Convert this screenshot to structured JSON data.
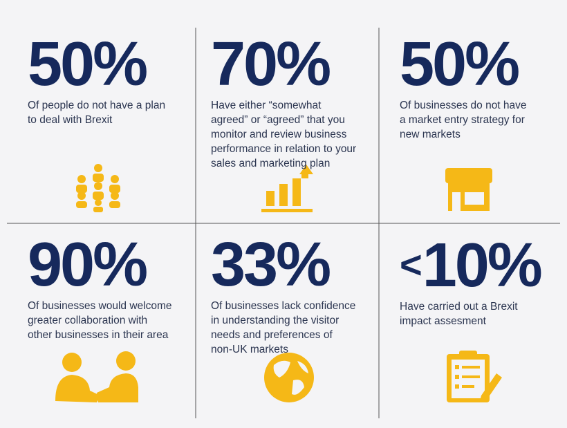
{
  "cells": [
    {
      "stat": "50%",
      "lines": [
        "Of people do not have a plan",
        "to deal with Brexit"
      ]
    },
    {
      "stat": "70%",
      "lines": [
        "Have either “somewhat",
        "agreed” or “agreed” that you",
        "monitor and review business",
        "performance in relation to your",
        "sales and marketing plan"
      ]
    },
    {
      "stat": "50%",
      "lines": [
        "Of businesses do not have",
        "a market entry strategy for",
        "new markets"
      ]
    },
    {
      "stat": "90%",
      "lines": [
        "Of businesses would welcome",
        "greater collaboration with",
        "other businesses in their area"
      ]
    },
    {
      "stat": "33%",
      "lines": [
        "Of businesses lack confidence",
        "in understanding the visitor",
        "needs and preferences of",
        "non-UK markets"
      ]
    },
    {
      "prefix": "<",
      "stat": "10%",
      "lines": [
        "Have carried out a Brexit",
        "impact assesment"
      ]
    }
  ]
}
